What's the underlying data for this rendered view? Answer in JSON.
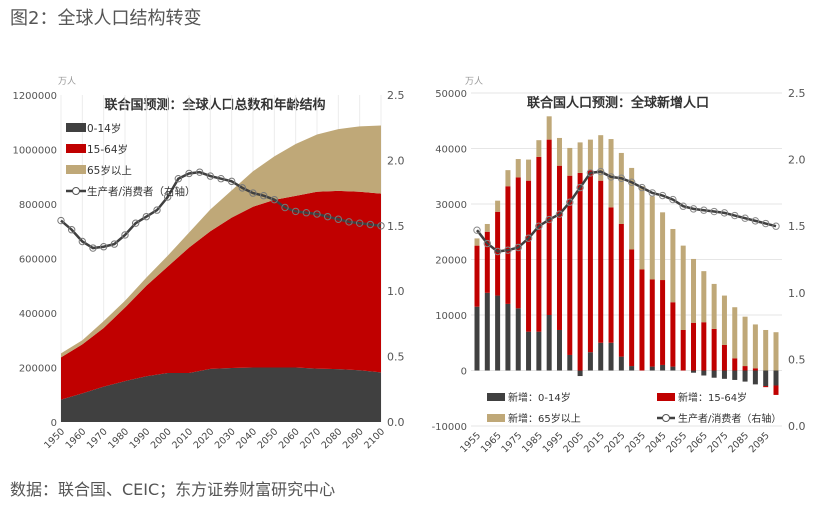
{
  "figure_title": "图2：全球人口结构转变",
  "source": "数据：联合国、CEIC；东方证券财富研究中心",
  "colors": {
    "child": "#404040",
    "working": "#c00000",
    "elderly": "#bfa878",
    "line": "#404040"
  },
  "chart_data": [
    {
      "type": "area",
      "title": "联合国预测：全球人口总数和年龄结构",
      "unit": "万人",
      "ylim": [
        0,
        1200000
      ],
      "y_ticks": [
        "0",
        "200000",
        "400000",
        "600000",
        "800000",
        "1000000",
        "1200000"
      ],
      "y2lim": [
        0,
        2.5
      ],
      "y2_ticks": [
        "0.0",
        "0.5",
        "1.0",
        "1.5",
        "2.0",
        "2.5"
      ],
      "x_ticks": [
        "1950",
        "1960",
        "1970",
        "1980",
        "1990",
        "2000",
        "2010",
        "2020",
        "2030",
        "2040",
        "2050",
        "2060",
        "2070",
        "2080",
        "2090",
        "2100"
      ],
      "legend": [
        "0-14岁",
        "15-64岁",
        "65岁以上",
        "生产者/消费者（右轴）"
      ],
      "legend_position": "top-left",
      "area_years": [
        1950,
        1960,
        1970,
        1980,
        1990,
        2000,
        2010,
        2020,
        2030,
        2040,
        2050,
        2060,
        2070,
        2080,
        2090,
        2100
      ],
      "series": [
        {
          "name": "0-14岁",
          "values": [
            82000,
            105000,
            130000,
            150000,
            168000,
            180000,
            180000,
            195000,
            198000,
            200000,
            200000,
            200000,
            196000,
            194000,
            190000,
            182000
          ]
        },
        {
          "name": "15-64岁",
          "values": [
            155000,
            180000,
            215000,
            270000,
            332000,
            390000,
            460000,
            505000,
            552000,
            590000,
            615000,
            630000,
            649000,
            654000,
            655000,
            656000
          ]
        },
        {
          "name": "65岁以上",
          "values": [
            15000,
            15000,
            25000,
            25000,
            30000,
            40000,
            55000,
            80000,
            100000,
            130000,
            160000,
            190000,
            210000,
            227000,
            240000,
            250000
          ]
        }
      ],
      "line": {
        "name": "生产者/消费者（右轴）",
        "start_year": 1950,
        "step": 5,
        "values": [
          1.54,
          1.47,
          1.38,
          1.33,
          1.34,
          1.36,
          1.43,
          1.52,
          1.57,
          1.62,
          1.72,
          1.86,
          1.9,
          1.91,
          1.88,
          1.86,
          1.84,
          1.79,
          1.75,
          1.73,
          1.7,
          1.64,
          1.61,
          1.6,
          1.59,
          1.57,
          1.55,
          1.53,
          1.52,
          1.51,
          1.5
        ]
      }
    },
    {
      "type": "bar",
      "title": "联合国人口预测：全球新增人口",
      "unit": "万人",
      "ylim": [
        -10000,
        50000
      ],
      "y_ticks": [
        "-10000",
        "0",
        "10000",
        "20000",
        "30000",
        "40000",
        "50000"
      ],
      "y2lim": [
        0,
        2.5
      ],
      "y2_ticks": [
        "0.0",
        "0.5",
        "1.0",
        "1.5",
        "2.0",
        "2.5"
      ],
      "x_ticks": [
        "1955",
        "1965",
        "1975",
        "1985",
        "1995",
        "2005",
        "2015",
        "2025",
        "2035",
        "2045",
        "2055",
        "2065",
        "2075",
        "2085",
        "2095"
      ],
      "legend": [
        "新增：0-14岁",
        "新增：15-64岁",
        "新增：65岁以上",
        "生产者/消费者（右轴）"
      ],
      "legend_position": "bottom",
      "years": [
        1955,
        1960,
        1965,
        1970,
        1975,
        1980,
        1985,
        1990,
        1995,
        2000,
        2005,
        2010,
        2015,
        2020,
        2025,
        2030,
        2035,
        2040,
        2045,
        2050,
        2055,
        2060,
        2065,
        2070,
        2075,
        2080,
        2085,
        2090,
        2095,
        2100
      ],
      "series": [
        {
          "name": "新增：0-14岁",
          "values": [
            11500,
            14000,
            13500,
            12000,
            11200,
            7000,
            7000,
            10000,
            7300,
            2800,
            -1000,
            3300,
            5000,
            5000,
            2500,
            800,
            0,
            700,
            1000,
            700,
            0,
            -400,
            -900,
            -1300,
            -1500,
            -1700,
            -2000,
            -2500,
            -2800,
            -2700
          ]
        },
        {
          "name": "新增：15-64岁",
          "values": [
            11000,
            11000,
            15100,
            21200,
            23600,
            27200,
            31500,
            31600,
            29600,
            32300,
            35600,
            32800,
            29200,
            24400,
            23900,
            21000,
            18200,
            15700,
            15300,
            11600,
            7300,
            8600,
            8700,
            7500,
            4600,
            2200,
            800,
            400,
            -200,
            -1700
          ]
        },
        {
          "name": "新增：65岁以上",
          "values": [
            1300,
            1400,
            2000,
            2900,
            3300,
            3800,
            3000,
            4200,
            5000,
            5000,
            5500,
            5500,
            8200,
            12300,
            12800,
            14700,
            15000,
            15000,
            12200,
            13200,
            15200,
            11500,
            9200,
            8100,
            8900,
            9200,
            8900,
            7900,
            7300,
            6900
          ]
        }
      ],
      "line": {
        "name": "生产者/消费者（右轴）",
        "values": [
          1.47,
          1.37,
          1.31,
          1.32,
          1.34,
          1.41,
          1.5,
          1.55,
          1.59,
          1.68,
          1.79,
          1.9,
          1.91,
          1.87,
          1.86,
          1.83,
          1.79,
          1.75,
          1.73,
          1.7,
          1.65,
          1.63,
          1.62,
          1.61,
          1.6,
          1.58,
          1.56,
          1.54,
          1.52,
          1.5
        ]
      }
    }
  ]
}
